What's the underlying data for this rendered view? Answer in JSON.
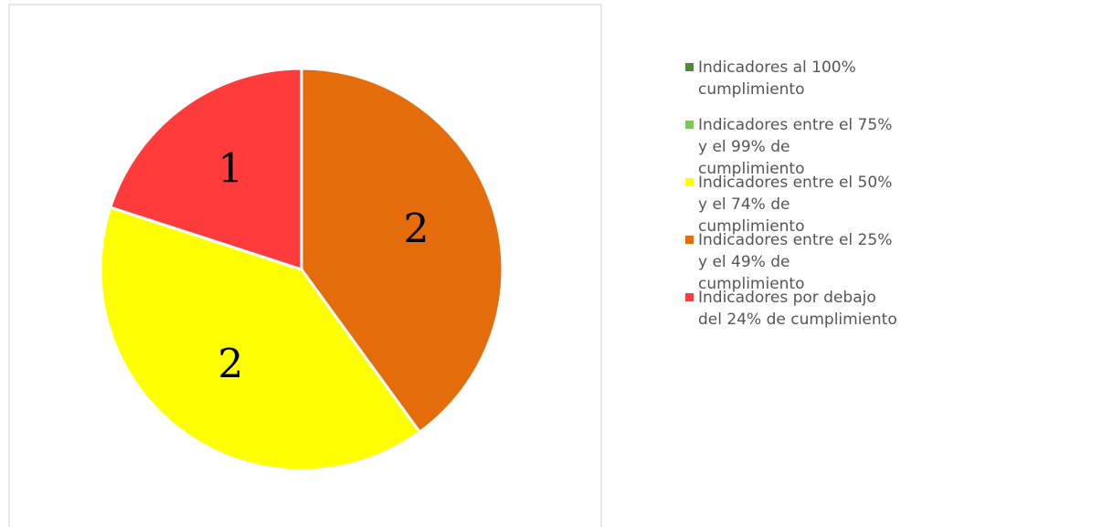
{
  "chart_data": {
    "type": "pie",
    "categories": [
      "Indicadores al 100% cumplimiento",
      "Indicadores entre el 75% y el 99% de cumplimiento",
      "Indicadores entre el 50% y el 74% de cumplimiento",
      "Indicadores entre el 25% y el 49% de cumplimiento",
      "Indicadores por debajo del 24% de cumplimiento"
    ],
    "values": [
      0,
      0,
      2,
      2,
      1
    ],
    "colors": [
      "#4f8a3b",
      "#7dc55e",
      "#ffff00",
      "#e46c0a",
      "#ff3b3b"
    ],
    "legend": "right"
  }
}
